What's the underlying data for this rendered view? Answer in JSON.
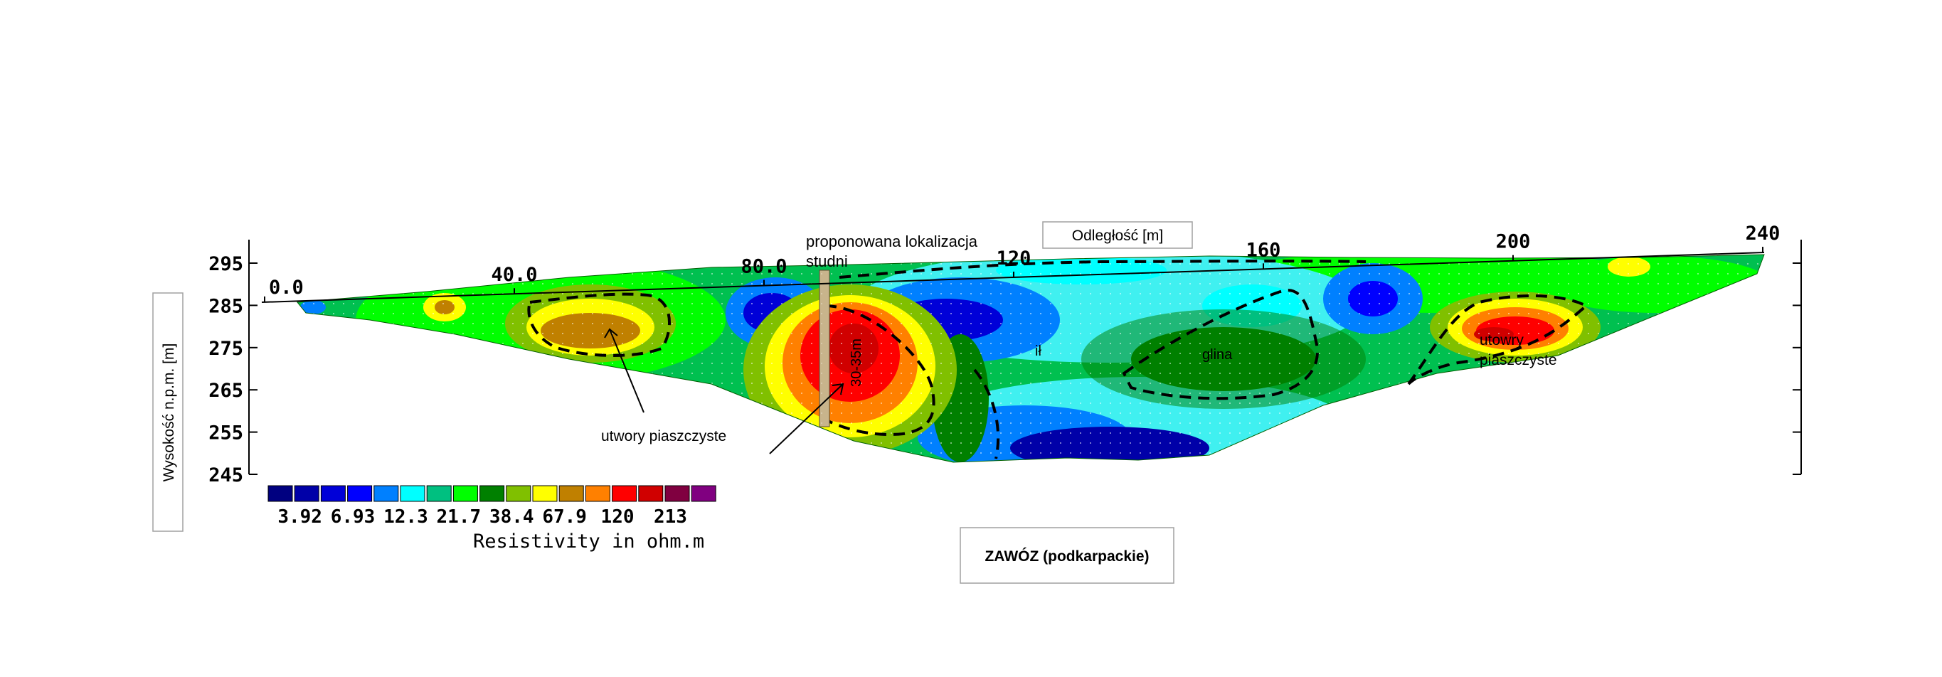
{
  "chart_data": {
    "type": "heatmap",
    "title": "",
    "x_axis": {
      "label": "Odległość [m]",
      "ticks": [
        {
          "value": 0,
          "label": "0.0"
        },
        {
          "value": 40,
          "label": "40.0"
        },
        {
          "value": 80,
          "label": "80.0"
        },
        {
          "value": 120,
          "label": "120"
        },
        {
          "value": 160,
          "label": "160"
        },
        {
          "value": 200,
          "label": "200"
        },
        {
          "value": 240,
          "label": "240"
        }
      ]
    },
    "y_axis": {
      "label": "Wysokość n.p.m. [m]",
      "range": [
        245,
        300
      ],
      "ticks": [
        {
          "value": 295,
          "label": "295"
        },
        {
          "value": 285,
          "label": "285"
        },
        {
          "value": 275,
          "label": "275"
        },
        {
          "value": 265,
          "label": "265"
        },
        {
          "value": 255,
          "label": "255"
        },
        {
          "value": 245,
          "label": "245"
        }
      ]
    },
    "colorbar": {
      "title": "Resistivity in ohm.m",
      "colors": [
        "#000080",
        "#0000a8",
        "#0000d8",
        "#0000ff",
        "#0080ff",
        "#00ffff",
        "#00c080",
        "#00ff00",
        "#008000",
        "#80c000",
        "#ffff00",
        "#c08000",
        "#ff8000",
        "#ff0000",
        "#d00000",
        "#800040",
        "#800080"
      ],
      "labels": [
        "3.92",
        "6.93",
        "12.3",
        "21.7",
        "38.4",
        "67.9",
        "120",
        "213"
      ]
    },
    "annotations": {
      "well": "proponowana lokalizacja studni",
      "well_depth": "30-35m",
      "sand_left": "utwory piaszczyste",
      "clay_1": "ił",
      "clay_2": "glina",
      "sand_right": "utowry piaszczyste"
    },
    "site_label": "ZAWÓZ (podkarpackie)"
  }
}
